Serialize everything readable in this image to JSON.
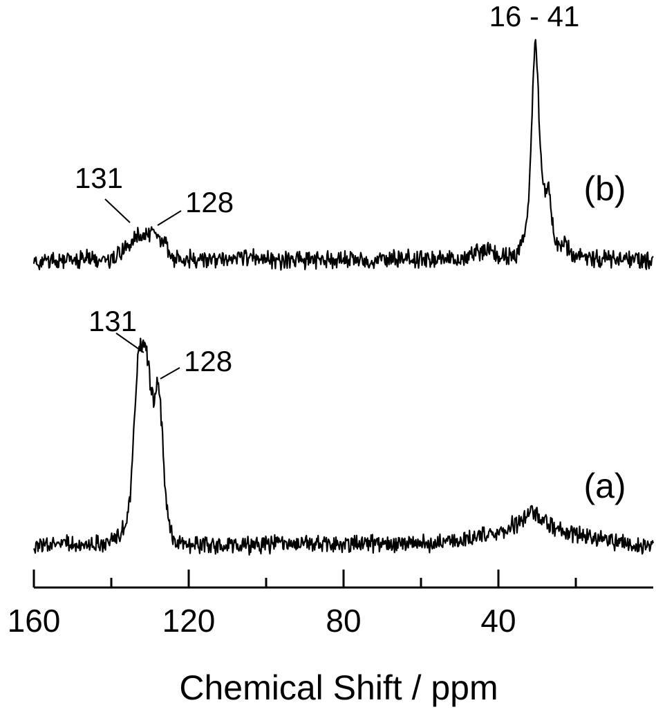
{
  "chart_data": {
    "type": "line",
    "xlabel": "Chemical Shift / ppm",
    "xlim": [
      160,
      0
    ],
    "x_reversed": true,
    "xticks": [
      160,
      120,
      80,
      40
    ],
    "minor_xticks": [
      140,
      100,
      60,
      20
    ],
    "ylabel": "",
    "grid": false,
    "series": [
      {
        "name": "(b)",
        "peaks": [
          {
            "x": 131,
            "label": "131"
          },
          {
            "x": 128,
            "label": "128"
          },
          {
            "x": 30,
            "label": "16 - 41"
          }
        ],
        "points": [
          [
            160,
            0
          ],
          [
            152,
            0.3
          ],
          [
            145,
            0.4
          ],
          [
            140,
            0.2
          ],
          [
            137,
            1.5
          ],
          [
            135,
            2.6
          ],
          [
            133,
            3.5
          ],
          [
            131,
            3.9
          ],
          [
            129.5,
            3.6
          ],
          [
            128,
            3.4
          ],
          [
            126,
            2.2
          ],
          [
            124,
            0.3
          ],
          [
            115,
            0.2
          ],
          [
            105,
            0.5
          ],
          [
            95,
            0.1
          ],
          [
            85,
            0.2
          ],
          [
            75,
            0.2
          ],
          [
            60,
            0.4
          ],
          [
            50,
            0.3
          ],
          [
            42,
            1.8
          ],
          [
            40,
            0.6
          ],
          [
            35,
            0.8
          ],
          [
            33,
            4.0
          ],
          [
            32,
            9.0
          ],
          [
            31,
            24.0
          ],
          [
            30.5,
            30.0
          ],
          [
            30,
            26.0
          ],
          [
            29,
            14.0
          ],
          [
            28,
            9.0
          ],
          [
            27,
            10.0
          ],
          [
            26,
            5.0
          ],
          [
            25,
            2.0
          ],
          [
            23,
            2.6
          ],
          [
            21,
            0.8
          ],
          [
            15,
            0.3
          ],
          [
            10,
            0.1
          ],
          [
            5,
            0.2
          ],
          [
            0,
            0.1
          ]
        ]
      },
      {
        "name": "(a)",
        "peaks": [
          {
            "x": 131,
            "label": "131"
          },
          {
            "x": 128,
            "label": "128"
          }
        ],
        "points": [
          [
            160,
            0
          ],
          [
            150,
            0.4
          ],
          [
            142,
            0.5
          ],
          [
            138,
            1.8
          ],
          [
            136,
            4.0
          ],
          [
            135,
            10.0
          ],
          [
            134,
            24.0
          ],
          [
            133,
            35.0
          ],
          [
            132,
            37.0
          ],
          [
            131,
            36.0
          ],
          [
            130,
            30.0
          ],
          [
            129,
            26.0
          ],
          [
            128,
            31.0
          ],
          [
            127,
            22.0
          ],
          [
            126,
            10.0
          ],
          [
            125,
            3.0
          ],
          [
            123,
            0.5
          ],
          [
            110,
            0.3
          ],
          [
            100,
            0.2
          ],
          [
            90,
            0.4
          ],
          [
            80,
            0.3
          ],
          [
            70,
            0.4
          ],
          [
            60,
            0.6
          ],
          [
            50,
            0.9
          ],
          [
            45,
            1.6
          ],
          [
            40,
            2.4
          ],
          [
            37,
            3.4
          ],
          [
            35,
            4.4
          ],
          [
            33,
            5.5
          ],
          [
            32,
            6.0
          ],
          [
            30,
            5.4
          ],
          [
            28,
            4.6
          ],
          [
            25,
            3.2
          ],
          [
            20,
            2.2
          ],
          [
            15,
            1.5
          ],
          [
            10,
            0.8
          ],
          [
            5,
            0.4
          ],
          [
            0,
            0.2
          ]
        ]
      }
    ]
  }
}
